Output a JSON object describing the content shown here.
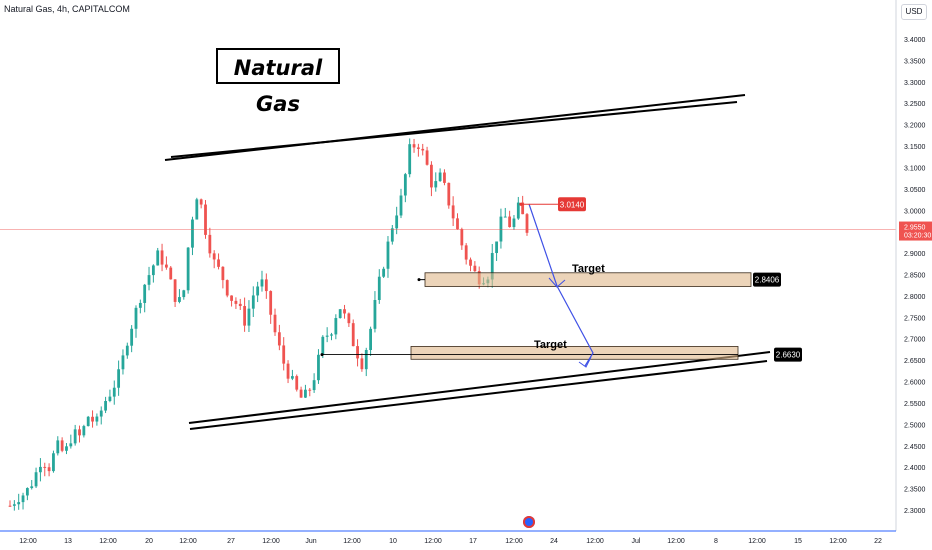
{
  "header": {
    "symbol_line": "Natural Gas, 4h, CAPITALCOM",
    "currency_button": "USD"
  },
  "annotations": {
    "title": "Natural Gas",
    "target_upper_label": "Target",
    "target_lower_label": "Target",
    "price_tag_current": "3.0140",
    "price_tag_target1": "2.8406",
    "price_tag_target2": "2.6630"
  },
  "price_axis": {
    "current_price": "2.9550",
    "countdown": "03:20:30"
  },
  "colors": {
    "up": "#26a69a",
    "down": "#ef5350",
    "zone": "#e0b88a",
    "arrow": "#3f51e6",
    "tag_red": "#e53935",
    "tag_black": "#000000"
  },
  "chart_data": {
    "type": "candlestick",
    "timeframe": "4h",
    "ylim": [
      2.27,
      3.42
    ],
    "y_ticks": [
      "3.4000",
      "3.3500",
      "3.3000",
      "3.2500",
      "3.2000",
      "3.1500",
      "3.1000",
      "3.0500",
      "3.0000",
      "2.9500",
      "2.9000",
      "2.8500",
      "2.8000",
      "2.7500",
      "2.7000",
      "2.6500",
      "2.6000",
      "2.5500",
      "2.5000",
      "2.4500",
      "2.4000",
      "2.3500",
      "2.3000"
    ],
    "x_ticks": [
      "12:00",
      "13",
      "12:00",
      "20",
      "12:00",
      "27",
      "12:00",
      "Jun",
      "12:00",
      "10",
      "12:00",
      "17",
      "12:00",
      "24",
      "12:00",
      "Jul",
      "12:00",
      "8",
      "12:00",
      "15",
      "12:00",
      "22"
    ],
    "close_anchors": [
      2.31,
      2.33,
      2.34,
      2.37,
      2.42,
      2.4,
      2.45,
      2.43,
      2.48,
      2.47,
      2.52,
      2.5,
      2.55,
      2.58,
      2.62,
      2.7,
      2.76,
      2.82,
      2.86,
      2.9,
      2.86,
      2.8,
      2.78,
      2.96,
      3.05,
      2.95,
      2.88,
      2.85,
      2.8,
      2.78,
      2.74,
      2.8,
      2.84,
      2.78,
      2.7,
      2.64,
      2.6,
      2.56,
      2.57,
      2.62,
      2.7,
      2.72,
      2.78,
      2.74,
      2.68,
      2.64,
      2.72,
      2.82,
      2.9,
      2.98,
      3.03,
      3.14,
      3.16,
      3.12,
      3.05,
      3.08,
      3.02,
      2.96,
      2.9,
      2.86,
      2.84,
      2.85,
      2.93,
      2.99,
      2.96,
      3.01,
      2.955
    ],
    "channel_upper": [
      {
        "x": "20 12:00",
        "y": 3.12
      },
      {
        "x": "beyond 12:00 (right of 8)",
        "y": 3.27
      }
    ],
    "channel_lower": [
      {
        "x": "20 12:00",
        "y": 2.5
      },
      {
        "x": "beyond 12:00 (right of 8)",
        "y": 2.66
      }
    ],
    "target_zones": [
      {
        "label": "Target",
        "low": 2.822,
        "high": 2.854,
        "price": 2.8406
      },
      {
        "label": "Target",
        "low": 2.652,
        "high": 2.682,
        "price": 2.663
      }
    ],
    "current_price": 2.955,
    "grid": false
  }
}
